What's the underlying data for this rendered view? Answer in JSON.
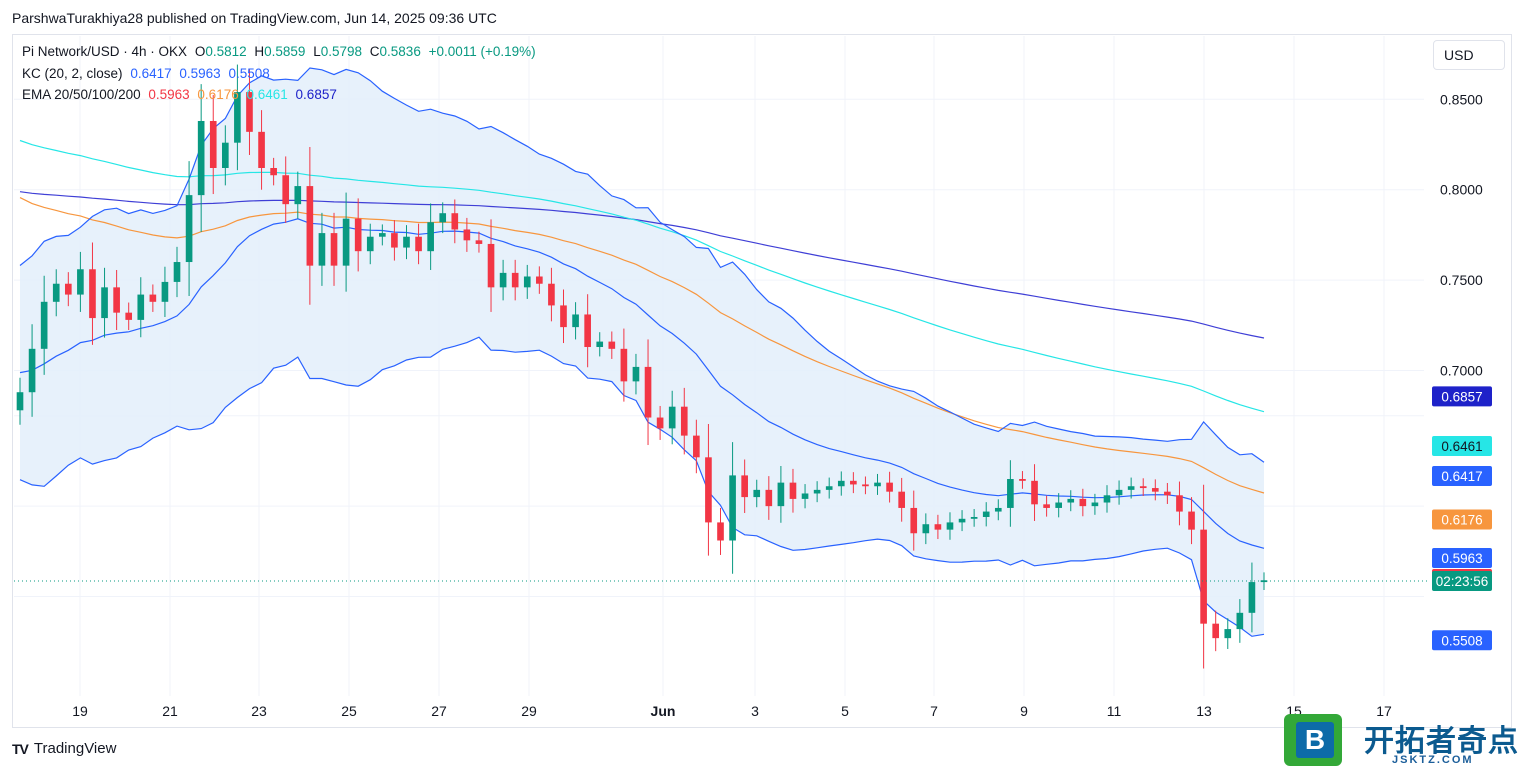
{
  "header": {
    "published": "ParshwaTurakhiya28 published on TradingView.com, Jun 14, 2025 09:36 UTC"
  },
  "legend": {
    "title": "Pi Network/USD · 4h · OKX",
    "o_label": "O",
    "o": "0.5812",
    "h_label": "H",
    "h": "0.5859",
    "l_label": "L",
    "l": "0.5798",
    "c_label": "C",
    "c": "0.5836",
    "change": "+0.0011 (+0.19%)",
    "kc_label": "KC (20, 2, close)",
    "kc_upper": "0.6417",
    "kc_mid": "0.5963",
    "kc_lower": "0.5508",
    "ema_label": "EMA 20/50/100/200",
    "ema20": "0.5963",
    "ema50": "0.6176",
    "ema100": "0.6461",
    "ema200": "0.6857"
  },
  "currency_button": "USD",
  "footer": {
    "brand": "TradingView"
  },
  "watermark": {
    "badge": "B",
    "title": "开拓者奇点",
    "sub": "JSKTZ.COM"
  },
  "colors": {
    "up": "#089981",
    "down": "#f23645",
    "kc_band": "#2962ff",
    "kc_fill": "#e3effa",
    "ema20": "#f23645",
    "ema50": "#f7963e",
    "ema100": "#26e6e6",
    "ema200": "#3f3fd6"
  },
  "chart_data": {
    "type": "candlestick",
    "interval": "4h",
    "ylim": [
      0.52,
      0.885
    ],
    "y_ticks": [
      "0.8500",
      "0.8000",
      "0.7500",
      "0.7000"
    ],
    "x_ticks": [
      "19",
      "21",
      "23",
      "25",
      "27",
      "29",
      "Jun",
      "3",
      "5",
      "7",
      "9",
      "11",
      "13",
      "15",
      "17"
    ],
    "price_labels": [
      {
        "text": "0.6857",
        "value": 0.6857,
        "color": "#1e22c9",
        "text_color": "#ffffff"
      },
      {
        "text": "0.6461",
        "value": 0.6461,
        "color": "#26e6e6",
        "text_color": "#131722"
      },
      {
        "text": "0.6417",
        "value": 0.6417,
        "color": "#2962ff",
        "text_color": "#ffffff"
      },
      {
        "text": "0.6176",
        "value": 0.6176,
        "color": "#f7963e",
        "text_color": "#ffffff"
      },
      {
        "text": "0.5963",
        "value": 0.5963,
        "color": "#2962ff",
        "text_color": "#ffffff"
      },
      {
        "text": "0.5963",
        "value": 0.5963,
        "color": "#f23645",
        "text_color": "#ffffff"
      },
      {
        "text": "02:23:56",
        "value": 0.5836,
        "color": "#089981",
        "text_color": "#ffffff"
      },
      {
        "text": "0.5508",
        "value": 0.5508,
        "color": "#2962ff",
        "text_color": "#ffffff"
      }
    ],
    "close_approx": [
      0.688,
      0.712,
      0.738,
      0.748,
      0.742,
      0.756,
      0.729,
      0.746,
      0.732,
      0.728,
      0.742,
      0.738,
      0.749,
      0.76,
      0.797,
      0.838,
      0.812,
      0.826,
      0.854,
      0.832,
      0.812,
      0.808,
      0.792,
      0.802,
      0.758,
      0.776,
      0.758,
      0.784,
      0.766,
      0.774,
      0.776,
      0.768,
      0.774,
      0.766,
      0.782,
      0.787,
      0.778,
      0.772,
      0.77,
      0.746,
      0.754,
      0.746,
      0.752,
      0.748,
      0.736,
      0.724,
      0.731,
      0.713,
      0.716,
      0.712,
      0.694,
      0.702,
      0.674,
      0.668,
      0.68,
      0.664,
      0.652,
      0.616,
      0.606,
      0.642,
      0.63,
      0.634,
      0.625,
      0.638,
      0.629,
      0.632,
      0.634,
      0.636,
      0.639,
      0.637,
      0.636,
      0.638,
      0.633,
      0.624,
      0.61,
      0.615,
      0.612,
      0.616,
      0.618,
      0.619,
      0.622,
      0.624,
      0.64,
      0.639,
      0.626,
      0.624,
      0.627,
      0.629,
      0.625,
      0.627,
      0.631,
      0.634,
      0.636,
      0.635,
      0.633,
      0.631,
      0.622,
      0.612,
      0.56,
      0.552,
      0.557,
      0.566,
      0.583,
      0.584
    ]
  }
}
